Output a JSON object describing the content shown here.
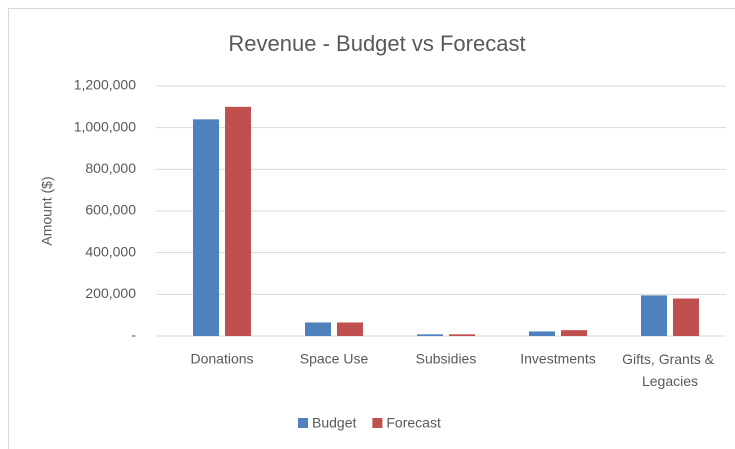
{
  "chart_data": {
    "type": "bar",
    "title": "Revenue - Budget vs Forecast",
    "y_label": "Amount ($)",
    "categories": [
      "Donations",
      "Space Use",
      "Subsidies",
      "Investments",
      "Gifts, Grants & Legacies"
    ],
    "series": [
      {
        "name": "Budget",
        "color": "#4f81bd",
        "values": [
          1040000,
          65000,
          8000,
          22000,
          195000
        ]
      },
      {
        "name": "Forecast",
        "color": "#c0504d",
        "values": [
          1100000,
          65000,
          8000,
          28000,
          180000
        ]
      }
    ],
    "ylim": [
      0,
      1200000
    ],
    "yticks": [
      {
        "value": 0,
        "label": "-"
      },
      {
        "value": 200000,
        "label": "200,000"
      },
      {
        "value": 400000,
        "label": "400,000"
      },
      {
        "value": 600000,
        "label": "600,000"
      },
      {
        "value": 800000,
        "label": "800,000"
      },
      {
        "value": 1000000,
        "label": "1,000,000"
      },
      {
        "value": 1200000,
        "label": "1,200,000"
      }
    ],
    "grid": true,
    "legend": "bottom"
  }
}
